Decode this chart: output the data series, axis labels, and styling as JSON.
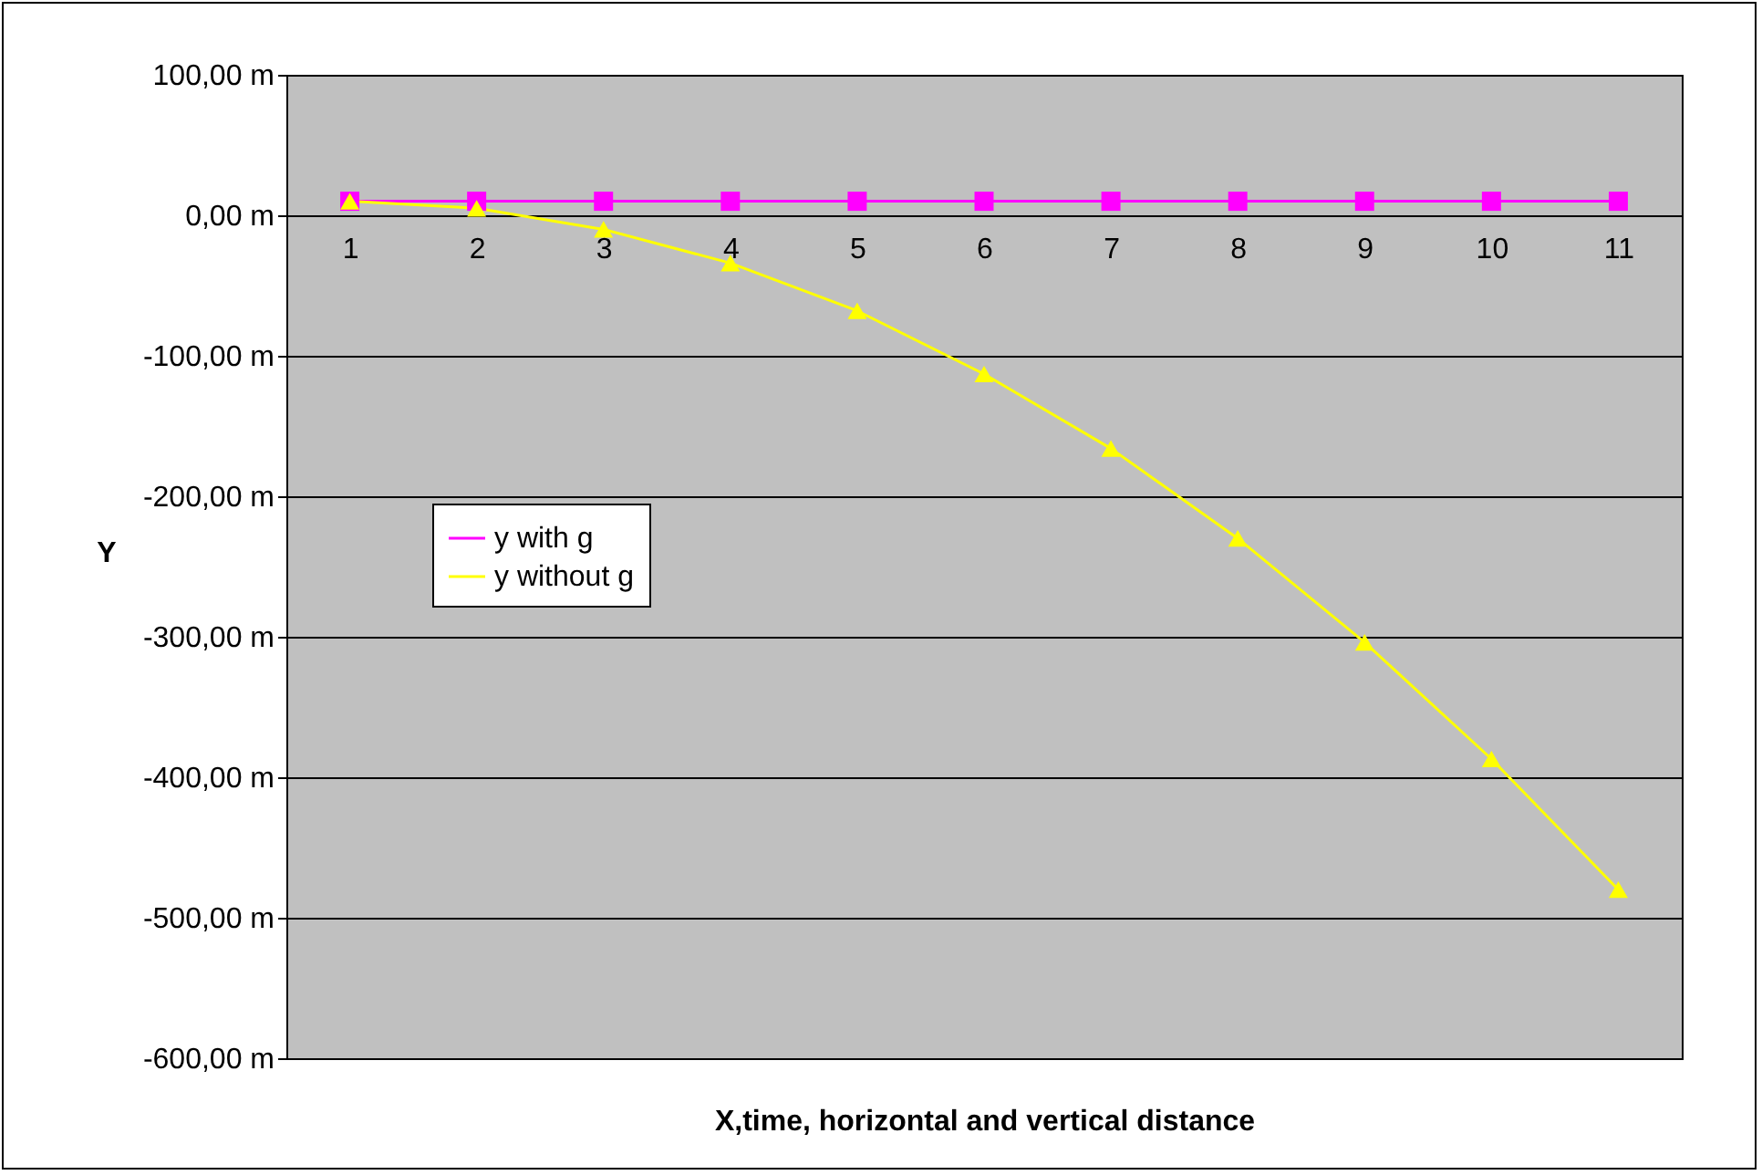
{
  "chart_data": {
    "type": "line",
    "xlabel": "X,time, horizontal and vertical distance",
    "ylabel": "Y",
    "categories": [
      "1",
      "2",
      "3",
      "4",
      "5",
      "6",
      "7",
      "8",
      "9",
      "10",
      "11"
    ],
    "series": [
      {
        "name": "y with g",
        "color": "#ff00ff",
        "marker": "square",
        "values": [
          10,
          10,
          10,
          10,
          10,
          10,
          10,
          10,
          10,
          10,
          10
        ]
      },
      {
        "name": "y without g",
        "color": "#ffff00",
        "marker": "triangle",
        "values": [
          10,
          5,
          -10,
          -34,
          -68,
          -113,
          -166,
          -230,
          -304,
          -387,
          -480
        ]
      }
    ],
    "ylim": [
      -600,
      100
    ],
    "yticks": [
      {
        "value": -600,
        "label": "-600,00 m"
      },
      {
        "value": -500,
        "label": "-500,00 m"
      },
      {
        "value": -400,
        "label": "-400,00 m"
      },
      {
        "value": -300,
        "label": "-300,00 m"
      },
      {
        "value": -200,
        "label": "-200,00 m"
      },
      {
        "value": -100,
        "label": "-100,00 m"
      },
      {
        "value": 0,
        "label": "0,00 m"
      },
      {
        "value": 100,
        "label": "100,00 m"
      }
    ],
    "grid": "y",
    "legend": "left",
    "line_style": "solid"
  }
}
